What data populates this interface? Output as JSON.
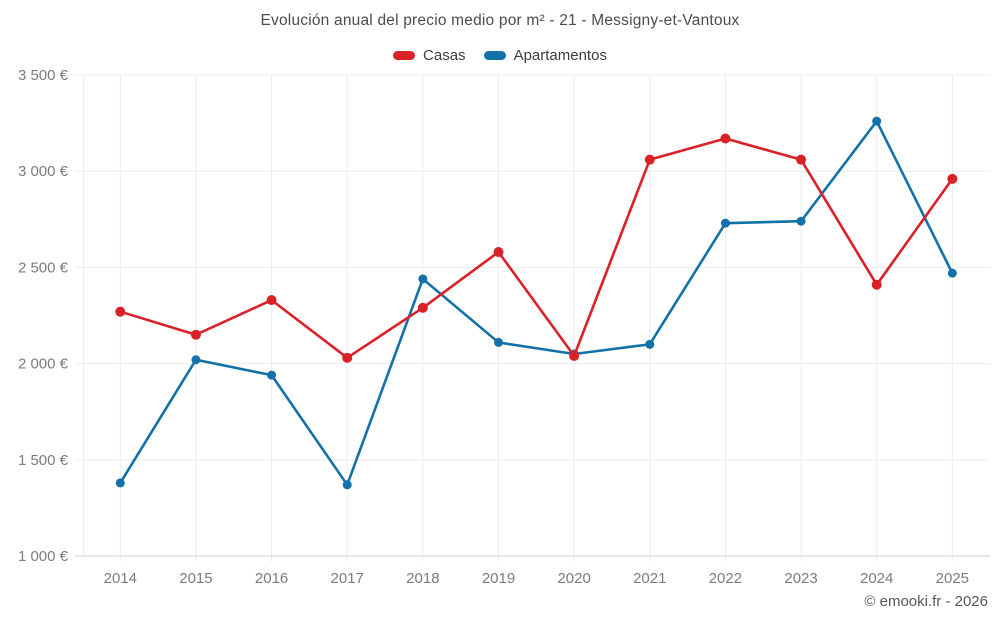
{
  "title": "Evolución anual del precio medio por m² - 21 - Messigny-et-Vantoux",
  "legend": [
    {
      "label": "Casas",
      "color": "#da2128"
    },
    {
      "label": "Apartamentos",
      "color": "#1371a9"
    }
  ],
  "footer": "© emooki.fr - 2026",
  "chart_data": {
    "type": "line",
    "title": "Evolución anual del precio medio por m² - 21 - Messigny-et-Vantoux",
    "x": [
      2014,
      2015,
      2016,
      2017,
      2018,
      2019,
      2020,
      2021,
      2022,
      2023,
      2024,
      2025
    ],
    "series": [
      {
        "name": "Casas",
        "color": "#da2128",
        "values": [
          2270,
          2150,
          2330,
          2030,
          2290,
          2580,
          2040,
          3060,
          3170,
          3060,
          2410,
          2960
        ]
      },
      {
        "name": "Apartamentos",
        "color": "#1371a9",
        "values": [
          1380,
          2020,
          1940,
          1370,
          2440,
          2110,
          2050,
          2100,
          2730,
          2740,
          3260,
          2470
        ]
      }
    ],
    "xlabel": "",
    "ylabel": "",
    "ylim": [
      1000,
      3500
    ],
    "yticks": [
      1000,
      1500,
      2000,
      2500,
      3000,
      3500
    ],
    "ytick_labels": [
      "1 000 €",
      "1 500 €",
      "2 000 €",
      "2 500 €",
      "3 000 €",
      "3 500 €"
    ],
    "grid": true,
    "legend_position": "top",
    "currency": "€"
  }
}
